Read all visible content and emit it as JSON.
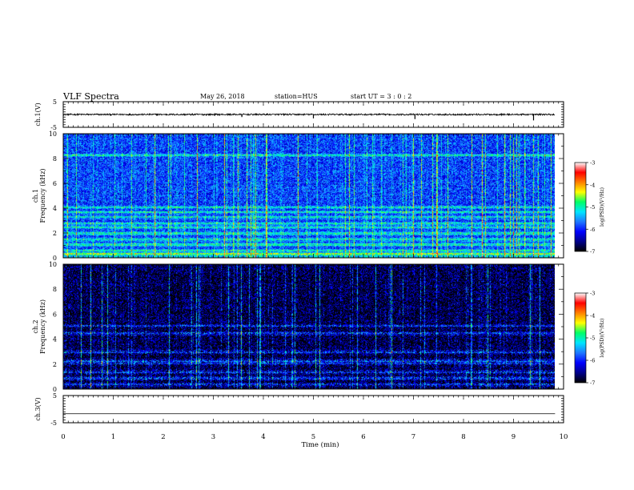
{
  "header": {
    "title": "VLF Spectra",
    "date": "May 26, 2018",
    "station": "station=HUS",
    "start_ut": "start  UT  =   3  : 0   : 2"
  },
  "chart_data": [
    {
      "type": "line",
      "panel": "ch1-waveform",
      "ylabel": "ch.1(V)",
      "ylim": [
        -5,
        5
      ],
      "yticks": [
        5,
        -5
      ],
      "xlim": [
        0,
        10
      ],
      "x_data_range": [
        0,
        9.83
      ],
      "baseline": 0,
      "noise_amplitude": 0.3,
      "spikes": [
        {
          "x": 3.57,
          "y": -1.0
        },
        {
          "x": 5.0,
          "y": -1.5
        },
        {
          "x": 7.03,
          "y": -1.8
        },
        {
          "x": 9.4,
          "y": -2.3
        }
      ]
    },
    {
      "type": "heatmap",
      "panel": "ch1-spectrogram",
      "ylabel": "ch.1\nFrequency (kHz)",
      "ylim": [
        0,
        10
      ],
      "yticks": [
        0,
        2,
        4,
        6,
        8,
        10
      ],
      "xlim": [
        0,
        10
      ],
      "x_data_range": [
        0,
        9.83
      ],
      "base_level": -5.9,
      "horizontal_bands_khz": [
        0.35,
        0.6,
        1.1,
        1.5,
        2.0,
        2.5,
        2.8,
        3.3,
        3.7,
        4.1,
        8.3
      ],
      "colorbar": {
        "label": "log(PSD)(V²/Hz)",
        "range": [
          -7,
          -3
        ],
        "ticks": [
          -3,
          -4,
          -5,
          -6,
          -7
        ]
      }
    },
    {
      "type": "heatmap",
      "panel": "ch2-spectrogram",
      "ylabel": "ch.2\nFrequency (kHz)",
      "ylim": [
        0,
        10
      ],
      "yticks": [
        0,
        2,
        4,
        6,
        8,
        10
      ],
      "xlim": [
        0,
        10
      ],
      "x_data_range": [
        0,
        9.83
      ],
      "base_level": -6.6,
      "horizontal_bands_khz": [
        0.4,
        0.9,
        1.4,
        2.1,
        2.3,
        3.0,
        4.5,
        5.1
      ],
      "colorbar": {
        "label": "log(PSD)(V²/Hz)",
        "range": [
          -7,
          -3
        ],
        "ticks": [
          -3,
          -4,
          -5,
          -6,
          -7
        ]
      }
    },
    {
      "type": "line",
      "panel": "ch3-waveform",
      "ylabel": "ch.3(V)",
      "ylim": [
        -5,
        5
      ],
      "yticks": [
        5,
        -5
      ],
      "xlim": [
        0,
        10
      ],
      "x_data_range": [
        0,
        9.83
      ],
      "baseline": -1.7,
      "noise_amplitude": 0
    }
  ],
  "xaxis": {
    "label": "Time  (min)",
    "ticks": [
      "0",
      "1",
      "2",
      "3",
      "4",
      "5",
      "6",
      "7",
      "8",
      "9",
      "10"
    ]
  },
  "colors": {
    "colormap": [
      "#000000",
      "#00008b",
      "#0000ff",
      "#1e78ff",
      "#00e5ff",
      "#00ff66",
      "#ffff00",
      "#ff8000",
      "#ff0000",
      "#ffffff"
    ]
  }
}
